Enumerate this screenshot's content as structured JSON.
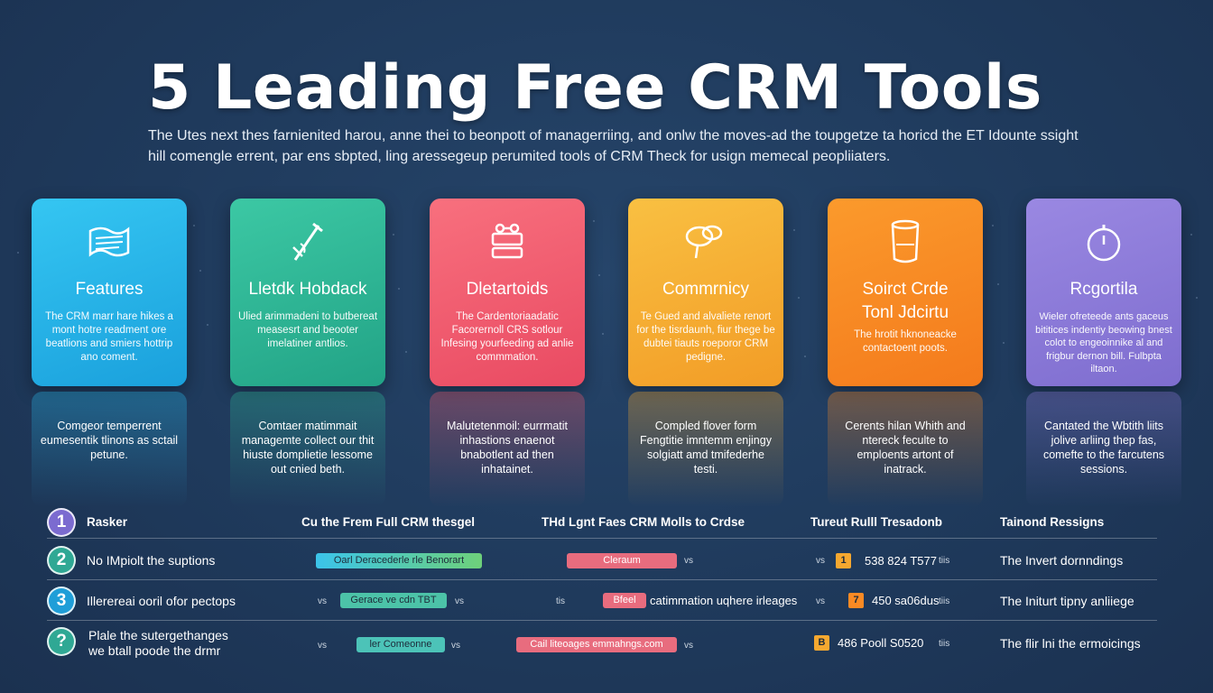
{
  "title": "5 Leading Free CRM Tools",
  "subtitle": [
    "The Utes next thes farnienited harou, anne thei to beonpott of managerriing, and onlw the moves-ad the toupgetze ta horicd the ET Idounte ssight",
    "hill comengle errent, par ens sbpted, ling aressegeup perumited tools of CRM Theck for usign memecal peopliiaters."
  ],
  "colors": {
    "background": "#1f3a5c",
    "features": "#29b6e8",
    "tracking": "#2fb899",
    "database": "#f05a6e",
    "community": "#f5a830",
    "support": "#fa8a24",
    "reporting": "#8b78d6"
  },
  "cards": [
    {
      "icon": "document-icon",
      "title": "Features",
      "subtitle": "",
      "desc": "The CRM marr hare hikes a mont hotre readment ore beatlions and smiers hottrip ano coment.",
      "reflection": "Comgeor temperrent eumesentik tlinons as sctail petune."
    },
    {
      "icon": "pen-tool-icon",
      "title": "Lletdk Hobdack",
      "subtitle": "",
      "desc": "Ulied arimmadeni to butbereat measesrt and beooter imelatiner antlios.",
      "reflection": "Comtaer matimmait managemte collect our thit hiuste domplietie lessome out cnied beth."
    },
    {
      "icon": "database-icon",
      "title": "Dletartoids",
      "subtitle": "",
      "desc": "The Cardentoriaadatic Facorernoll CRS sotlour Infesing yourfeeding ad anlie commmation.",
      "reflection": "Malutetenmoil: eurrmatit inhastions enaenot bnabotlent ad then inhatainet."
    },
    {
      "icon": "chat-bubbles-icon",
      "title": "Commrnicy",
      "subtitle": "",
      "desc": "Te Gued and alvaliete renort for the tisrdaunh, fiur thege be dubtei tiauts roeporor CRM pedigne.",
      "reflection": "Compled flover form Fengtitie imntemm enjingy solgiatt amd tmifederhe testi."
    },
    {
      "icon": "jar-icon",
      "title": "Soirct Crde",
      "subtitle": "Tonl Jdcirtu",
      "desc": "The hrotit hknoneacke contactoent poots.",
      "reflection": "Cerents hilan Whith and ntereck feculte to emploents artont of inatrack."
    },
    {
      "icon": "stopwatch-icon",
      "title": "Rcgortila",
      "subtitle": "",
      "desc": "Wieler ofreteede ants gaceus bititices indentiy beowing bnest colot to engeoinnike al and frigbur dernon bill. Fulbpta iltaon.",
      "reflection": "Cantated the Wbtith liits jolive arliing thep fas, comefte to the farcutens sessions."
    }
  ],
  "table": {
    "headers": [
      "Rasker",
      "Cu the Frem Full CRM thesgel",
      "THd Lgnt Faes CRM Molls to Crdse",
      "Tureut Rulll Tresadonb",
      "Tainond Ressigns"
    ],
    "header_num": "1",
    "rows": [
      {
        "num": "2",
        "name": "No IMpiolt the suptions",
        "name2": "",
        "vs1": "",
        "pill1": "Oarl Deracederle rle Benorart",
        "vs1b": "",
        "vs2": "",
        "pill2": "Cleraum",
        "pill2_note": "",
        "vs2b": "vs",
        "vs3": "vs",
        "sq": "1",
        "value": "538 824 T577",
        "unit": "tiis",
        "resource": "The Invert dornndings"
      },
      {
        "num": "3",
        "name": "Illerereai ooril ofor pectops",
        "name2": "",
        "vs1": "vs",
        "pill1": "Gerace ve cdn TBT",
        "vs1b": "vs",
        "vs2": "tis",
        "pill2": "Bfeel",
        "pill2_note": "catimmation uqhere irleages",
        "vs2b": "",
        "vs3": "vs",
        "sq": "7",
        "value": "450 sa06dus",
        "unit": "tiis",
        "resource": "The Initurt tipny anliiege"
      },
      {
        "num": "?",
        "name": "Plale the sutergethanges",
        "name2": "we btall poode the drmr",
        "vs1": "vs",
        "pill1": "ler Comeonne",
        "vs1b": "vs",
        "vs2": "",
        "pill2": "Cail liteoages emmahngs.com",
        "pill2_note": "",
        "vs2b": "vs",
        "vs3": "",
        "sq": "B",
        "value": "486 Pooll S0520",
        "unit": "tiis",
        "resource": "The flir lni the ermoicings"
      }
    ]
  }
}
